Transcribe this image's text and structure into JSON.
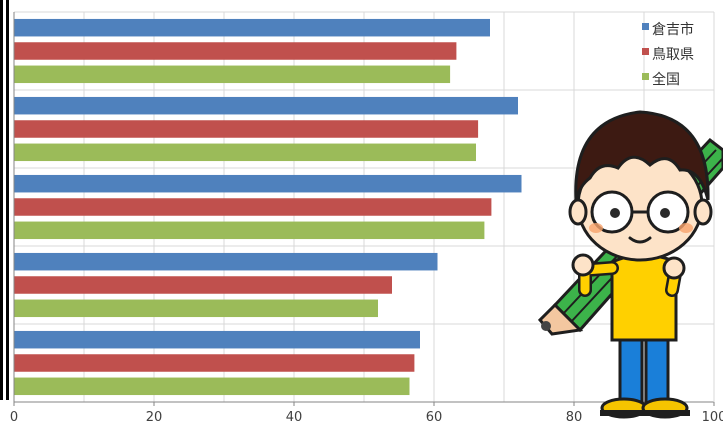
{
  "chart_data": {
    "type": "bar",
    "orientation": "horizontal",
    "categories": [
      "",
      "",
      "",
      "",
      ""
    ],
    "series": [
      {
        "name": "倉吉市",
        "values": [
          68.0,
          72.0,
          72.5,
          60.5,
          58.0
        ]
      },
      {
        "name": "鳥取県",
        "values": [
          63.2,
          66.3,
          68.2,
          54.0,
          57.2
        ]
      },
      {
        "name": "全国",
        "values": [
          62.3,
          66.0,
          67.2,
          52.0,
          56.5
        ]
      }
    ],
    "xlim": [
      0,
      100
    ],
    "x_ticks": [
      "0",
      "20",
      "40",
      "60",
      "80",
      "100"
    ],
    "grid": true,
    "legend_position": "top-right",
    "title": "",
    "xlabel": "",
    "ylabel": ""
  },
  "colors": {
    "series": [
      "#4f81bd",
      "#c0504d",
      "#9bbb59"
    ],
    "grid": "#d9d9d9",
    "axis": "#868686"
  },
  "illustration": {
    "name": "boy-with-pencil-illustration"
  }
}
